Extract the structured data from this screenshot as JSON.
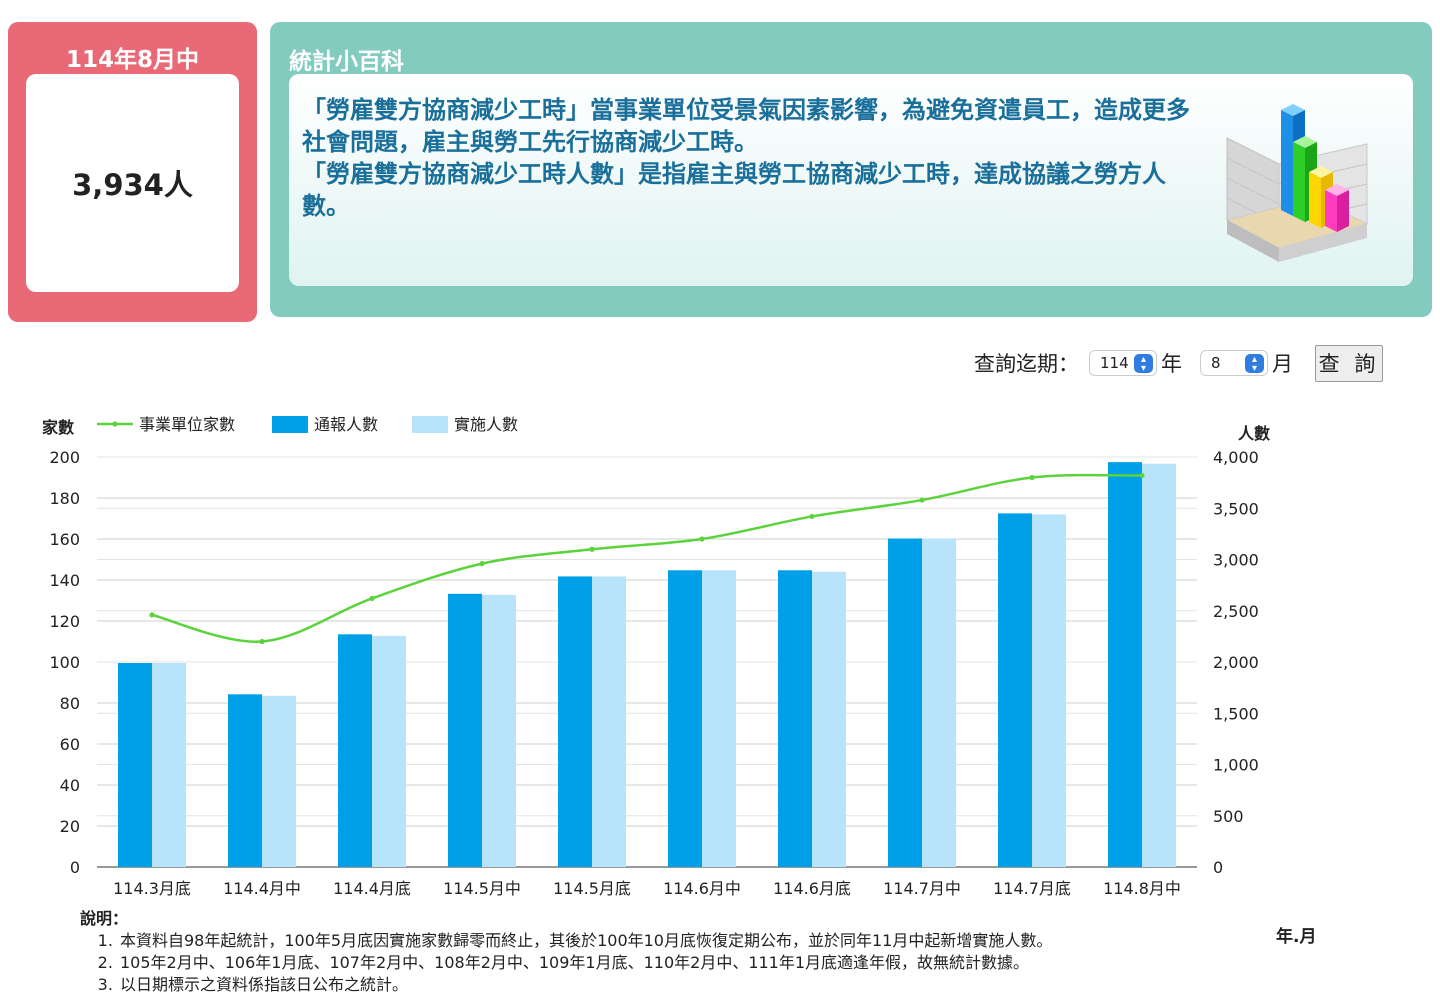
{
  "stat_card": {
    "title": "114年8月中",
    "value": "3,934人"
  },
  "wiki": {
    "title": "統計小百科",
    "paragraphs": [
      "「勞雇雙方協商減少工時」當事業單位受景氣因素影響，為避免資遣員工，造成更多社會問題，雇主與勞工先行協商減少工時。",
      "「勞雇雙方協商減少工時人數」是指雇主與勞工協商減少工時，達成協議之勞方人數。"
    ],
    "icon": "3d-bar-chart-icon"
  },
  "query": {
    "label": "查詢迄期：",
    "year_value": "114",
    "year_unit": "年",
    "month_value": "8",
    "month_unit": "月",
    "button_label": "查 詢"
  },
  "chart_data": {
    "type": "bar",
    "left_axis_label": "家數",
    "right_axis_label": "人數",
    "xlabel": "年.月",
    "left_ylim": [
      0,
      200
    ],
    "left_ticks": [
      "0",
      "20",
      "40",
      "60",
      "80",
      "100",
      "120",
      "140",
      "160",
      "180",
      "200"
    ],
    "right_ylim": [
      0,
      4000
    ],
    "right_ticks": [
      "0",
      "500",
      "1,000",
      "1,500",
      "2,000",
      "2,500",
      "3,000",
      "3,500",
      "4,000"
    ],
    "categories": [
      "114.3月底",
      "114.4月中",
      "114.4月底",
      "114.5月中",
      "114.5月底",
      "114.6月中",
      "114.6月底",
      "114.7月中",
      "114.7月底",
      "114.8月中"
    ],
    "series": [
      {
        "name": "事業單位家數",
        "kind": "line",
        "axis": "left",
        "color": "#5cd23c",
        "values": [
          123,
          110,
          131,
          148,
          155,
          160,
          171,
          179,
          190,
          191
        ]
      },
      {
        "name": "通報人數",
        "kind": "bar",
        "axis": "right",
        "color": "#00a0e8",
        "values": [
          1990,
          1685,
          2270,
          2665,
          2835,
          2895,
          2895,
          3205,
          3450,
          3950
        ]
      },
      {
        "name": "實施人數",
        "kind": "bar",
        "axis": "right",
        "color": "#b8e4fb",
        "values": [
          1990,
          1670,
          2255,
          2655,
          2835,
          2895,
          2880,
          3205,
          3440,
          3934
        ]
      }
    ],
    "legend_position": "top-left",
    "grid": true
  },
  "notes": {
    "head": "說明：",
    "items": [
      "本資料自98年起統計，100年5月底因實施家數歸零而終止，其後於100年10月底恢復定期公布，並於同年11月中起新增實施人數。",
      "105年2月中、106年1月底、107年2月中、108年2月中、109年1月底、110年2月中、111年1月底適逢年假，故無統計數據。",
      "以日期標示之資料係指該日公布之統計。"
    ]
  }
}
